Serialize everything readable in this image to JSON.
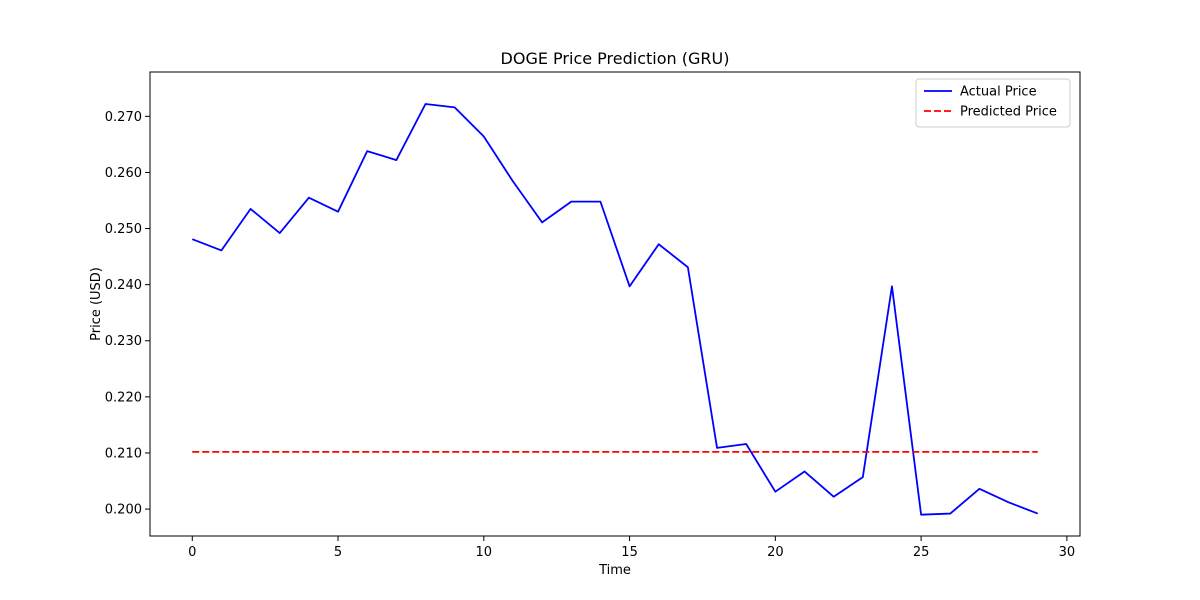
{
  "chart_data": {
    "type": "line",
    "title": "DOGE Price Prediction (GRU)",
    "xlabel": "Time",
    "ylabel": "Price (USD)",
    "xlim": [
      -1.45,
      30.45
    ],
    "ylim": [
      0.1952,
      0.2779
    ],
    "x_ticks": [
      0,
      5,
      10,
      15,
      20,
      25,
      30
    ],
    "y_ticks": [
      0.2,
      0.21,
      0.22,
      0.23,
      0.24,
      0.25,
      0.26,
      0.27
    ],
    "y_tick_labels": [
      "0.200",
      "0.210",
      "0.220",
      "0.230",
      "0.240",
      "0.250",
      "0.260",
      "0.270"
    ],
    "grid": false,
    "legend_position": "top-right",
    "x": [
      0,
      1,
      2,
      3,
      4,
      5,
      6,
      7,
      8,
      9,
      10,
      11,
      12,
      13,
      14,
      15,
      16,
      17,
      18,
      19,
      20,
      21,
      22,
      23,
      24,
      25,
      26,
      27,
      28,
      29
    ],
    "series": [
      {
        "name": "Actual Price",
        "color": "#0000ff",
        "style": "solid",
        "values": [
          0.2481,
          0.2461,
          0.2535,
          0.2492,
          0.2555,
          0.253,
          0.2638,
          0.2622,
          0.2722,
          0.2716,
          0.2664,
          0.2584,
          0.2511,
          0.2548,
          0.2548,
          0.2397,
          0.2472,
          0.2431,
          0.2109,
          0.2116,
          0.2031,
          0.2067,
          0.2022,
          0.2057,
          0.2397,
          0.199,
          0.1992,
          0.2036,
          0.2012,
          0.1992
        ]
      },
      {
        "name": "Predicted Price",
        "color": "#ff0000",
        "style": "dashed",
        "values": [
          0.2102,
          0.2102,
          0.2102,
          0.2102,
          0.2102,
          0.2102,
          0.2102,
          0.2102,
          0.2102,
          0.2102,
          0.2102,
          0.2102,
          0.2102,
          0.2102,
          0.2102,
          0.2102,
          0.2102,
          0.2102,
          0.2102,
          0.2102,
          0.2102,
          0.2102,
          0.2102,
          0.2102,
          0.2102,
          0.2102,
          0.2102,
          0.2102,
          0.2102,
          0.2102
        ]
      }
    ]
  }
}
